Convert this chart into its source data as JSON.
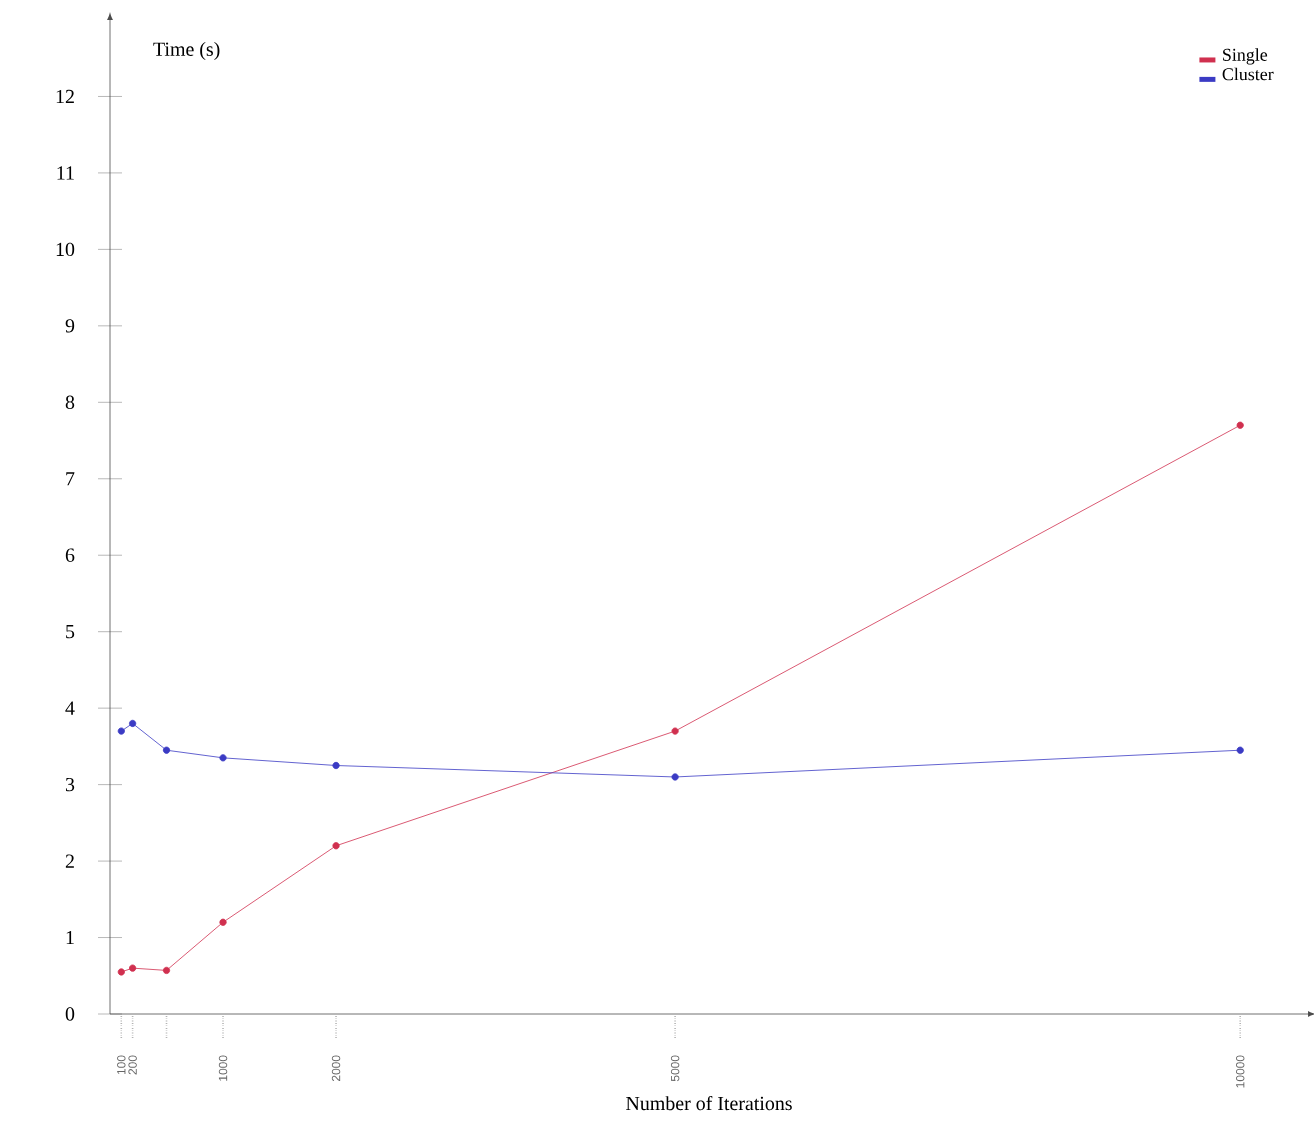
{
  "chart_data": {
    "type": "line",
    "xlabel": "Number of Iterations",
    "ylabel": "Time (s)",
    "x": [
      100,
      200,
      500,
      1000,
      2000,
      5000,
      10000
    ],
    "series": [
      {
        "name": "Single",
        "color": "#d0304f",
        "values": [
          0.55,
          0.6,
          0.57,
          1.2,
          2.2,
          3.7,
          7.7
        ]
      },
      {
        "name": "Cluster",
        "color": "#3b3bc4",
        "values": [
          3.7,
          3.8,
          3.45,
          3.35,
          3.25,
          3.1,
          3.45
        ]
      }
    ],
    "xlim": [
      0,
      10600
    ],
    "ylim": [
      0,
      13
    ],
    "xticks": [
      100,
      200,
      {
        "value": 500,
        "label": null
      },
      1000,
      2000,
      5000,
      10000
    ],
    "yticks": [
      0,
      1,
      2,
      3,
      4,
      5,
      6,
      7,
      8,
      9,
      10,
      11,
      12
    ],
    "grid": false,
    "legend": "top right",
    "marker": "circle",
    "line_style": "solid"
  }
}
